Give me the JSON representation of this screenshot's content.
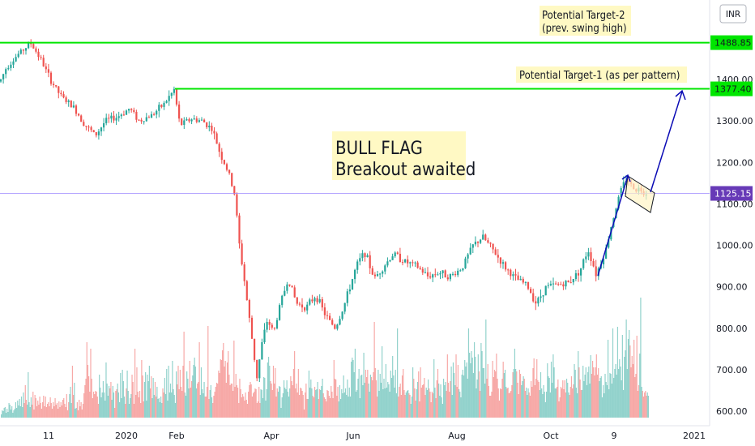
{
  "chart_data": {
    "type": "candlestick",
    "currency_label": "INR",
    "y_ticks": [
      "600.00",
      "700.00",
      "800.00",
      "900.00",
      "1000.00",
      "1100.00",
      "1200.00",
      "1300.00",
      "1400.00"
    ],
    "x_ticks": [
      "11",
      "2020",
      "Feb",
      "Apr",
      "Jun",
      "Aug",
      "Oct",
      "9",
      "2021"
    ],
    "horizontal_levels": [
      {
        "label": "1488.85",
        "value": 1488.85,
        "color": "#00e600"
      },
      {
        "label": "1377.40",
        "value": 1377.4,
        "color": "#00e600"
      },
      {
        "label": "1125.15",
        "value": 1125.15,
        "color": "#673ab7"
      }
    ],
    "annotations": {
      "pattern_title": "BULL FLAG",
      "pattern_subtitle": "Breakout awaited",
      "target2_line1": "Potential Target-2",
      "target2_line2": "(prev. swing high)",
      "target1": "Potential Target-1 (as per pattern)"
    },
    "price_path": [
      [
        0,
        1395
      ],
      [
        8,
        1430
      ],
      [
        22,
        1460
      ],
      [
        38,
        1488
      ],
      [
        50,
        1450
      ],
      [
        62,
        1400
      ],
      [
        75,
        1360
      ],
      [
        92,
        1330
      ],
      [
        105,
        1290
      ],
      [
        118,
        1265
      ],
      [
        130,
        1300
      ],
      [
        145,
        1310
      ],
      [
        160,
        1330
      ],
      [
        172,
        1300
      ],
      [
        188,
        1315
      ],
      [
        202,
        1340
      ],
      [
        215,
        1375
      ],
      [
        222,
        1290
      ],
      [
        236,
        1305
      ],
      [
        250,
        1300
      ],
      [
        262,
        1280
      ],
      [
        272,
        1220
      ],
      [
        282,
        1175
      ],
      [
        290,
        1120
      ],
      [
        296,
        990
      ],
      [
        300,
        940
      ],
      [
        306,
        850
      ],
      [
        312,
        760
      ],
      [
        317,
        680
      ],
      [
        323,
        760
      ],
      [
        330,
        820
      ],
      [
        338,
        790
      ],
      [
        346,
        860
      ],
      [
        356,
        920
      ],
      [
        366,
        860
      ],
      [
        378,
        850
      ],
      [
        390,
        880
      ],
      [
        402,
        830
      ],
      [
        414,
        800
      ],
      [
        424,
        850
      ],
      [
        432,
        900
      ],
      [
        440,
        950
      ],
      [
        450,
        985
      ],
      [
        462,
        920
      ],
      [
        474,
        950
      ],
      [
        486,
        980
      ],
      [
        500,
        960
      ],
      [
        514,
        950
      ],
      [
        528,
        925
      ],
      [
        542,
        935
      ],
      [
        556,
        925
      ],
      [
        570,
        945
      ],
      [
        584,
        1000
      ],
      [
        596,
        1020
      ],
      [
        608,
        990
      ],
      [
        622,
        950
      ],
      [
        636,
        920
      ],
      [
        650,
        905
      ],
      [
        662,
        860
      ],
      [
        674,
        900
      ],
      [
        688,
        905
      ],
      [
        702,
        910
      ],
      [
        716,
        940
      ],
      [
        726,
        990
      ],
      [
        736,
        930
      ],
      [
        748,
        990
      ],
      [
        756,
        1060
      ],
      [
        766,
        1130
      ],
      [
        774,
        1165
      ],
      [
        780,
        1140
      ],
      [
        790,
        1135
      ],
      [
        800,
        1125
      ]
    ],
    "volume_heights": [
      4,
      9,
      8,
      12,
      13,
      6,
      11,
      7,
      18,
      16,
      10,
      14,
      6,
      9,
      11,
      19,
      12,
      21,
      15,
      23,
      14,
      26,
      13,
      31,
      18,
      40,
      22,
      16,
      56,
      19,
      13,
      25,
      16,
      32,
      10,
      28,
      24,
      14,
      21,
      16,
      26,
      18,
      11,
      19,
      27,
      14,
      26,
      13,
      17,
      19,
      14,
      25,
      18,
      11,
      19,
      14,
      24,
      16,
      18,
      11,
      20,
      13,
      19,
      15,
      22,
      24,
      17,
      13,
      29,
      9,
      19,
      29,
      38,
      18,
      64,
      28,
      43,
      11,
      12,
      19,
      9,
      22,
      14,
      19,
      10,
      17,
      30,
      40,
      48,
      93,
      65,
      51,
      32,
      85,
      48,
      24,
      32,
      29,
      33,
      32,
      26,
      17,
      53,
      37,
      25,
      31,
      45,
      31,
      21,
      68,
      42,
      27,
      39,
      36,
      44,
      22,
      39,
      31,
      12,
      33,
      35,
      42,
      31,
      19,
      55,
      24,
      59,
      45,
      26,
      17,
      36,
      58,
      33,
      17,
      24,
      29,
      53,
      44,
      17,
      85,
      28,
      62,
      32,
      25,
      33,
      18,
      71,
      52,
      20,
      44,
      56,
      21,
      53,
      45,
      64,
      36,
      51,
      24,
      49,
      28,
      44,
      26,
      38,
      23,
      24,
      19,
      26,
      18,
      36,
      31,
      49,
      29,
      60,
      21,
      64,
      31,
      42,
      31,
      70,
      35,
      28,
      18,
      57,
      41,
      64,
      35,
      59,
      38,
      33,
      64,
      106,
      31,
      27,
      57,
      48,
      36,
      70,
      37,
      45,
      52,
      65,
      74,
      63,
      36,
      42,
      44,
      93,
      28,
      62,
      35,
      30,
      44,
      26,
      26,
      38,
      113,
      23,
      34,
      40,
      25,
      18,
      27,
      32,
      38,
      43,
      42,
      58,
      55,
      72,
      71,
      83,
      92,
      63,
      70,
      43,
      68,
      82,
      53,
      40,
      42,
      42,
      33,
      95,
      38,
      54,
      40,
      37,
      18,
      48,
      35,
      25,
      29,
      26,
      21,
      31,
      22,
      17,
      32,
      40,
      44,
      41,
      26,
      30,
      32,
      36,
      35,
      18,
      20,
      38,
      18,
      35,
      34,
      24,
      50,
      49,
      21,
      35,
      68,
      75,
      64,
      45,
      42,
      34,
      64,
      42,
      61,
      26,
      36,
      32,
      39,
      38,
      12,
      25,
      30,
      46,
      37,
      35,
      46,
      32,
      26,
      36,
      51,
      45,
      40,
      60,
      82,
      36,
      42,
      31,
      60,
      28,
      37,
      36,
      33,
      28,
      10,
      31,
      42,
      23,
      23,
      58,
      37,
      47,
      36,
      27,
      25,
      38,
      34,
      35,
      44,
      23,
      35,
      34,
      39,
      48,
      30,
      25,
      23,
      20,
      34,
      33,
      27,
      24,
      39,
      32,
      24,
      71,
      48,
      47,
      27,
      38,
      20,
      40,
      23,
      35,
      30,
      52,
      31,
      36,
      28,
      47,
      26,
      37,
      26,
      69,
      74,
      71,
      56,
      85,
      32,
      34,
      48,
      60,
      24,
      52,
      53,
      40,
      80,
      43,
      59,
      50,
      59,
      42,
      32,
      53,
      50,
      46,
      56,
      118,
      61,
      46,
      26,
      59,
      33,
      54,
      43,
      88,
      35,
      48,
      36,
      66,
      37,
      44,
      41,
      32,
      58,
      49,
      76,
      52,
      37,
      59,
      30,
      110,
      26,
      38,
      42,
      28,
      52,
      60,
      34,
      28,
      31,
      33,
      34,
      30,
      28,
      17,
      26,
      62,
      48,
      36,
      21,
      35,
      44,
      57,
      20,
      62,
      37,
      40,
      41,
      49,
      28,
      37,
      34,
      47,
      36,
      32,
      19,
      32,
      30,
      72,
      37,
      24,
      46,
      60,
      42,
      27,
      41,
      25,
      17,
      48,
      40,
      44,
      33,
      78,
      43,
      32,
      45,
      63,
      28,
      68,
      55,
      40,
      78,
      38,
      65,
      35,
      32,
      25,
      53,
      59,
      52,
      71,
      63,
      68,
      48,
      110,
      80,
      67,
      82,
      74,
      55,
      93,
      75,
      36,
      47,
      78,
      57,
      33,
      92,
      82,
      61,
      61,
      42,
      121,
      48,
      66,
      39,
      27,
      27,
      32,
      70,
      50,
      59,
      57,
      79,
      48,
      36,
      21,
      36,
      35,
      48,
      69,
      55,
      59,
      38,
      36,
      37,
      30,
      31,
      33,
      40,
      56,
      60,
      85,
      60,
      57,
      43,
      29,
      59,
      54,
      40,
      45,
      51,
      48,
      33,
      37,
      28,
      36,
      31,
      27,
      45,
      38,
      61,
      73,
      40,
      48,
      72,
      46,
      44,
      34,
      56,
      36,
      29,
      40,
      32,
      19,
      32,
      67,
      51,
      49,
      31,
      69,
      43,
      78,
      62,
      36,
      36,
      38,
      47,
      20,
      25,
      38,
      36,
      46,
      35,
      46,
      31,
      48,
      43,
      31,
      28,
      38,
      51,
      36,
      41,
      66,
      59,
      37,
      30,
      82,
      62,
      47,
      34,
      34,
      64,
      45,
      53,
      62,
      40,
      56,
      63,
      42,
      77,
      54,
      70,
      62,
      52,
      62,
      78,
      53,
      61,
      45,
      49,
      51,
      25,
      40,
      30,
      54,
      44,
      40,
      96,
      35,
      55,
      54,
      42,
      110,
      49,
      60,
      66,
      53,
      112,
      60,
      72,
      63,
      46,
      102,
      34,
      75,
      83,
      121,
      60,
      97,
      108,
      89,
      62,
      76,
      66,
      96,
      50,
      54,
      101,
      33,
      40,
      79,
      148,
      38,
      33,
      26,
      31,
      33,
      27,
      31,
      27
    ]
  }
}
